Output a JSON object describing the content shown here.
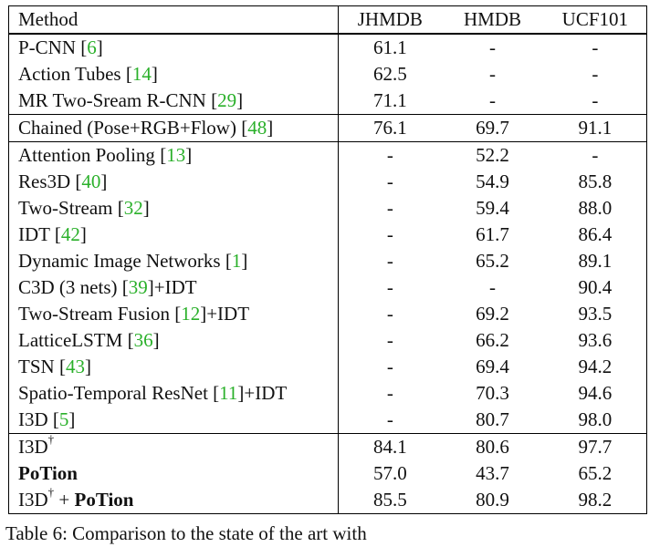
{
  "table": {
    "headers": {
      "method": "Method",
      "jhmdb": "JHMDB",
      "hmdb": "HMDB",
      "ucf": "UCF101"
    },
    "groups": [
      {
        "rows": [
          {
            "name": "P-CNN",
            "ref": "6",
            "suffix": "",
            "jhmdb": "61.1",
            "hmdb": "-",
            "ucf": "-"
          },
          {
            "name": "Action Tubes",
            "ref": "14",
            "suffix": "",
            "jhmdb": "62.5",
            "hmdb": "-",
            "ucf": "-"
          },
          {
            "name": "MR Two-Sream R-CNN",
            "ref": "29",
            "suffix": "",
            "jhmdb": "71.1",
            "hmdb": "-",
            "ucf": "-"
          }
        ]
      },
      {
        "rows": [
          {
            "name": "Chained (Pose+RGB+Flow)",
            "ref": "48",
            "suffix": "",
            "jhmdb": "76.1",
            "hmdb": "69.7",
            "ucf": "91.1"
          }
        ]
      },
      {
        "rows": [
          {
            "name": "Attention Pooling",
            "ref": "13",
            "suffix": "",
            "jhmdb": "-",
            "hmdb": "52.2",
            "ucf": "-"
          },
          {
            "name": "Res3D",
            "ref": "40",
            "suffix": "",
            "jhmdb": "-",
            "hmdb": "54.9",
            "ucf": "85.8"
          },
          {
            "name": "Two-Stream",
            "ref": "32",
            "suffix": "",
            "jhmdb": "-",
            "hmdb": "59.4",
            "ucf": "88.0"
          },
          {
            "name": "IDT",
            "ref": "42",
            "suffix": "",
            "jhmdb": "-",
            "hmdb": "61.7",
            "ucf": "86.4"
          },
          {
            "name": "Dynamic Image Networks ",
            "ref": "1",
            "suffix": "",
            "jhmdb": "-",
            "hmdb": "65.2",
            "ucf": "89.1"
          },
          {
            "name": "C3D (3 nets)",
            "ref": "39",
            "suffix": "+IDT",
            "jhmdb": "-",
            "hmdb": "-",
            "ucf": "90.4"
          },
          {
            "name": "Two-Stream Fusion",
            "ref": "12",
            "suffix": "+IDT",
            "jhmdb": "-",
            "hmdb": "69.2",
            "ucf": "93.5"
          },
          {
            "name": "LatticeLSTM",
            "ref": "36",
            "suffix": "",
            "jhmdb": "-",
            "hmdb": "66.2",
            "ucf": "93.6"
          },
          {
            "name": "TSN",
            "ref": "43",
            "suffix": "",
            "jhmdb": "-",
            "hmdb": "69.4",
            "ucf": "94.2"
          },
          {
            "name": "Spatio-Temporal ResNet",
            "ref": "11",
            "suffix": "+IDT",
            "jhmdb": "-",
            "hmdb": "70.3",
            "ucf": "94.6"
          },
          {
            "name": "I3D",
            "ref": "5",
            "suffix": "",
            "jhmdb": "-",
            "hmdb": "80.7",
            "ucf": "98.0"
          }
        ]
      },
      {
        "rows": [
          {
            "name": "I3D",
            "dagger": "†",
            "jhmdb": "84.1",
            "hmdb": "80.6",
            "ucf": "97.7"
          },
          {
            "name": "PoTion",
            "bold": true,
            "jhmdb": "57.0",
            "hmdb": "43.7",
            "ucf": "65.2"
          },
          {
            "name": "I3D",
            "dagger": "†",
            "plus": " + ",
            "bold_part": "PoTion",
            "bold_nums": true,
            "jhmdb": "85.5",
            "hmdb": "80.9",
            "ucf": "98.2"
          }
        ]
      }
    ]
  },
  "caption": "Table 6: Comparison to the state of the art with"
}
